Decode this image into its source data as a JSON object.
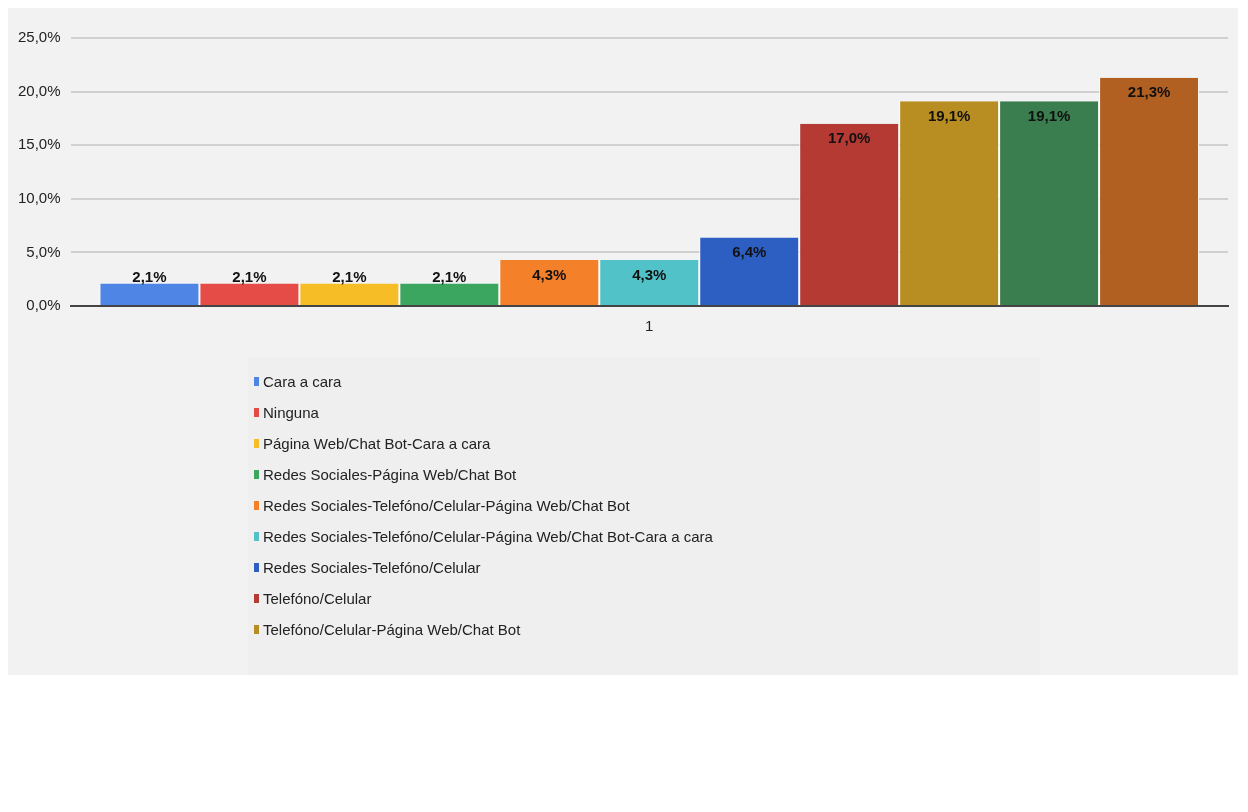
{
  "chart_data": {
    "type": "bar",
    "categories": [
      "1"
    ],
    "series": [
      {
        "name": "Cara a cara",
        "color": "#4f86e6",
        "values": [
          2.1
        ],
        "value_labels": [
          "2,1%"
        ]
      },
      {
        "name": "Ninguna",
        "color": "#e54b47",
        "values": [
          2.1
        ],
        "value_labels": [
          "2,1%"
        ]
      },
      {
        "name": "Página Web/Chat Bot-Cara a cara",
        "color": "#f7bd27",
        "values": [
          2.1
        ],
        "value_labels": [
          "2,1%"
        ]
      },
      {
        "name": "Redes Sociales-Página Web/Chat Bot",
        "color": "#3aa660",
        "values": [
          2.1
        ],
        "value_labels": [
          "2,1%"
        ]
      },
      {
        "name": "Redes Sociales-Telefóno/Celular-Página Web/Chat Bot",
        "color": "#f5802a",
        "values": [
          4.3
        ],
        "value_labels": [
          "4,3%"
        ]
      },
      {
        "name": "Redes Sociales-Telefóno/Celular-Página Web/Chat Bot-Cara a cara",
        "color": "#52c2c9",
        "values": [
          4.3
        ],
        "value_labels": [
          "4,3%"
        ]
      },
      {
        "name": "Redes Sociales-Telefóno/Celular",
        "color": "#2d5fc2",
        "values": [
          6.4
        ],
        "value_labels": [
          "6,4%"
        ]
      },
      {
        "name": "Telefóno/Celular",
        "color": "#b53a34",
        "values": [
          17.0
        ],
        "value_labels": [
          "17,0%"
        ]
      },
      {
        "name": "Telefóno/Celular-Página Web/Chat Bot",
        "color": "#b88e22",
        "values": [
          19.1
        ],
        "value_labels": [
          "19,1%"
        ]
      },
      {
        "color": "#3a7d4e",
        "values": [
          19.1
        ],
        "value_labels": [
          "19,1%"
        ]
      },
      {
        "color": "#b25f22",
        "values": [
          21.3
        ],
        "value_labels": [
          "21,3%"
        ]
      }
    ],
    "ylim": [
      0,
      25
    ],
    "yticks": [
      {
        "value": 0,
        "label": "0,0%"
      },
      {
        "value": 5,
        "label": "5,0%"
      },
      {
        "value": 10,
        "label": "10,0%"
      },
      {
        "value": 15,
        "label": "15,0%"
      },
      {
        "value": 20,
        "label": "20,0%"
      },
      {
        "value": 25,
        "label": "25,0%"
      }
    ],
    "grid": "y",
    "legend": "bottom"
  }
}
